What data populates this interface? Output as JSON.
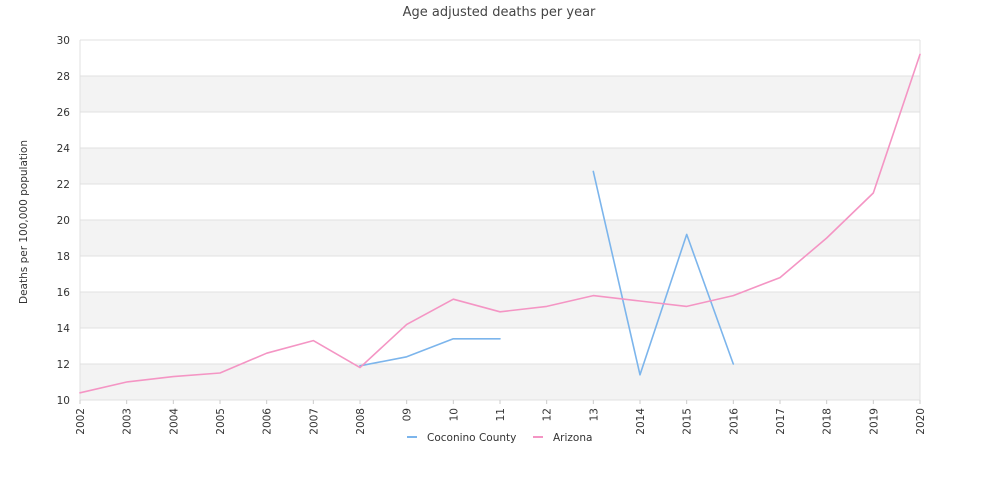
{
  "chart_data": {
    "type": "line",
    "title": "Age adjusted deaths per year",
    "xlabel": "",
    "ylabel": "Deaths per 100,000 population",
    "categories": [
      "2002",
      "2003",
      "2004",
      "2005",
      "2006",
      "2007",
      "2008",
      "09",
      "10",
      "11",
      "12",
      "13",
      "2014",
      "2015",
      "2016",
      "2017",
      "2018",
      "2019",
      "2020"
    ],
    "ylim": [
      10,
      30
    ],
    "yticks": [
      10,
      12,
      14,
      16,
      18,
      20,
      22,
      24,
      26,
      28,
      30
    ],
    "grid": "horizontal alternating bands",
    "legend_position": "bottom-center",
    "series": [
      {
        "name": "Coconino County",
        "color": "#7cb5ec",
        "values": [
          null,
          null,
          null,
          null,
          null,
          null,
          11.9,
          12.4,
          13.4,
          13.4,
          null,
          22.7,
          11.4,
          19.2,
          12.0,
          null,
          null,
          null,
          null
        ]
      },
      {
        "name": "Arizona",
        "color": "#f495c4",
        "values": [
          10.4,
          11.0,
          11.3,
          11.5,
          12.6,
          13.3,
          11.8,
          14.2,
          15.6,
          14.9,
          15.2,
          15.8,
          15.5,
          15.2,
          15.8,
          16.8,
          19.0,
          21.5,
          29.2
        ]
      }
    ]
  }
}
